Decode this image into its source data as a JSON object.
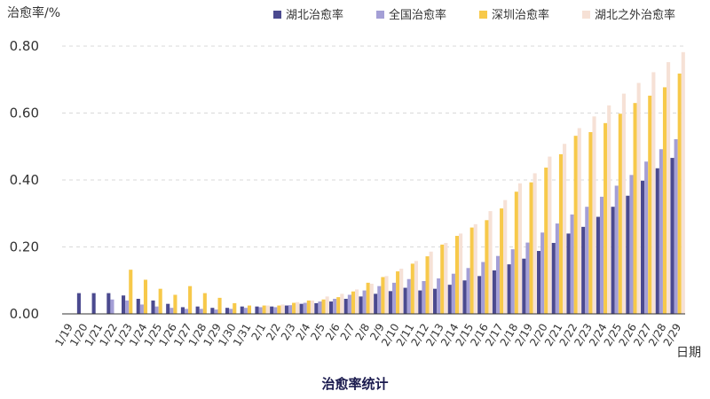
{
  "chart_data": {
    "type": "bar",
    "title": "治愈率统计",
    "ylabel": "治愈率/%",
    "xlabel": "日期",
    "ylim": [
      0,
      0.8
    ],
    "yticks": [
      "0.00",
      "0.20",
      "0.40",
      "0.60",
      "0.80"
    ],
    "grid": true,
    "legend_position": "top-right",
    "categories": [
      "1/19",
      "1/20",
      "1/21",
      "1/22",
      "1/23",
      "1/24",
      "1/25",
      "1/26",
      "1/27",
      "1/28",
      "1/29",
      "1/30",
      "1/31",
      "2/1",
      "2/2",
      "2/3",
      "2/4",
      "2/5",
      "2/6",
      "2/7",
      "2/8",
      "2/9",
      "2/10",
      "2/11",
      "2/12",
      "2/13",
      "2/14",
      "2/15",
      "2/16",
      "2/17",
      "2/18",
      "2/19",
      "2/20",
      "2/21",
      "2/22",
      "2/23",
      "2/24",
      "2/25",
      "2/26",
      "2/27",
      "2/28",
      "2/29"
    ],
    "series": [
      {
        "name": "湖北治愈率",
        "color": "#4b4a8f",
        "values": [
          0,
          0.062,
          0.062,
          0.062,
          0.055,
          0.045,
          0.04,
          0.03,
          0.02,
          0.022,
          0.018,
          0.018,
          0.022,
          0.022,
          0.022,
          0.025,
          0.03,
          0.032,
          0.037,
          0.045,
          0.052,
          0.06,
          0.068,
          0.078,
          0.07,
          0.075,
          0.087,
          0.1,
          0.113,
          0.13,
          0.148,
          0.165,
          0.188,
          0.212,
          0.24,
          0.26,
          0.29,
          0.32,
          0.353,
          0.398,
          0.435,
          0.466
        ]
      },
      {
        "name": "全国治愈率",
        "color": "#a49fd6",
        "values": [
          0,
          0,
          0,
          0.043,
          0.04,
          0.028,
          0.022,
          0.018,
          0.015,
          0.015,
          0.013,
          0.015,
          0.018,
          0.02,
          0.02,
          0.026,
          0.033,
          0.037,
          0.045,
          0.057,
          0.07,
          0.083,
          0.093,
          0.104,
          0.098,
          0.106,
          0.12,
          0.137,
          0.155,
          0.173,
          0.193,
          0.213,
          0.243,
          0.27,
          0.297,
          0.32,
          0.35,
          0.383,
          0.415,
          0.455,
          0.492,
          0.522
        ]
      },
      {
        "name": "深圳治愈率",
        "color": "#f7c94a",
        "values": [
          0,
          0,
          0,
          0,
          0.132,
          0.102,
          0.075,
          0.057,
          0.083,
          0.062,
          0.048,
          0.032,
          0.025,
          0.025,
          0.025,
          0.033,
          0.04,
          0.043,
          0.05,
          0.067,
          0.093,
          0.11,
          0.127,
          0.15,
          0.172,
          0.207,
          0.233,
          0.258,
          0.28,
          0.315,
          0.365,
          0.393,
          0.437,
          0.477,
          0.532,
          0.543,
          0.57,
          0.598,
          0.63,
          0.652,
          0.677,
          0.718
        ]
      },
      {
        "name": "湖北之外治愈率",
        "color": "#f6e1d6",
        "values": [
          0,
          0,
          0,
          0,
          0,
          0,
          0,
          0,
          0,
          0,
          0,
          0,
          0,
          0.025,
          0.028,
          0.035,
          0.04,
          0.052,
          0.06,
          0.073,
          0.09,
          0.113,
          0.135,
          0.158,
          0.186,
          0.212,
          0.24,
          0.268,
          0.307,
          0.34,
          0.39,
          0.42,
          0.47,
          0.508,
          0.555,
          0.59,
          0.623,
          0.658,
          0.69,
          0.722,
          0.752,
          0.782
        ]
      }
    ]
  }
}
